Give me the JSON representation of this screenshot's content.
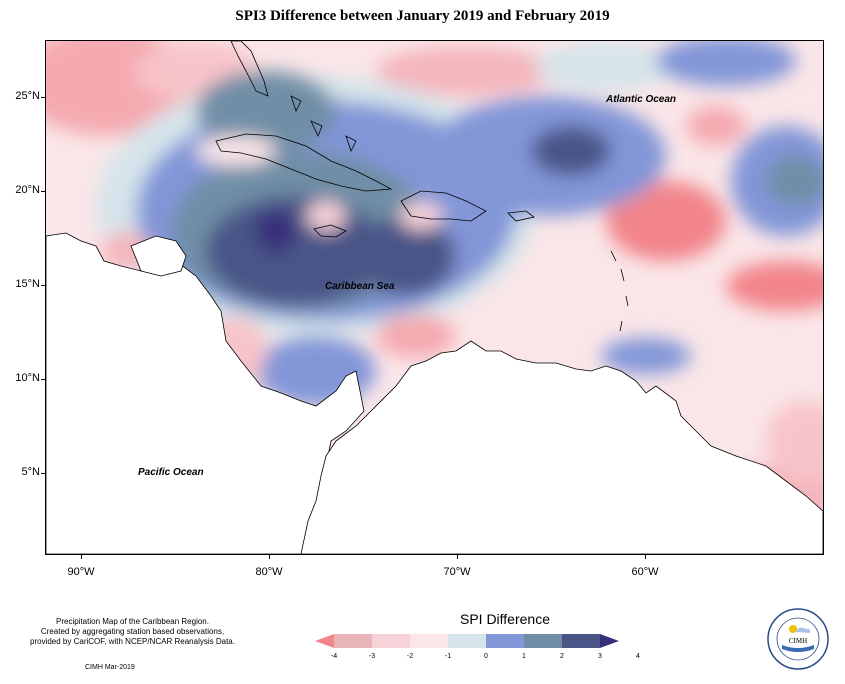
{
  "title": "SPI3 Difference between January 2019 and February 2019",
  "map": {
    "latitude_labels": [
      "25°N",
      "20°N",
      "15°N",
      "10°N",
      "5°N"
    ],
    "longitude_labels": [
      "90°W",
      "80°W",
      "70°W",
      "60°W"
    ],
    "place_labels": {
      "atlantic": "Atlantic Ocean",
      "caribbean": "Caribbean Sea",
      "pacific": "Pacific Ocean"
    }
  },
  "legend": {
    "title": "SPI Difference",
    "ticks": [
      "-4",
      "-3",
      "-2",
      "-1",
      "0",
      "1",
      "2",
      "3",
      "4"
    ],
    "colors": [
      "#f2858b",
      "#e9b4b8",
      "#f7d3d9",
      "#fae6e8",
      "#d6e5eb",
      "#8296d8",
      "#6f8ea6",
      "#4a5587",
      "#372f7a"
    ]
  },
  "credit": {
    "line1": "Precipitation Map of the Caribbean Region.",
    "line2": "Created by aggregating station based observations,",
    "line3": "provided by CariCOF, with NCEP/NCAR Reanalysis Data.",
    "date": "CIMH Mar-2019"
  },
  "logo": {
    "text": "CIMH"
  }
}
